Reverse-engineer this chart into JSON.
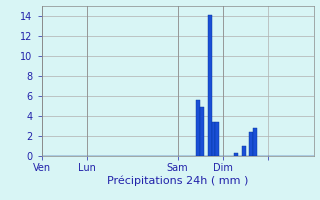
{
  "title": "Précipitations 24h ( mm )",
  "background_color": "#d8f5f5",
  "bar_color": "#1a4fd6",
  "bar_edge_color": "#003399",
  "grid_color": "#b0b0b0",
  "ylim": [
    0,
    15
  ],
  "yticks": [
    0,
    2,
    4,
    6,
    8,
    10,
    12,
    14
  ],
  "tick_color": "#2222aa",
  "title_color": "#2222aa",
  "n_bars": 72,
  "bar_values": [
    0,
    0,
    0,
    0,
    0,
    0,
    0,
    0,
    0,
    0,
    0,
    0,
    0,
    0,
    0,
    0,
    0,
    0,
    0,
    0,
    0,
    0,
    0,
    0,
    0,
    0,
    0,
    0,
    0,
    0,
    0,
    0,
    0,
    0,
    0,
    0,
    0,
    0,
    0,
    0,
    0,
    5.6,
    4.9,
    0,
    14.1,
    3.4,
    3.4,
    0,
    0,
    0,
    0,
    0.3,
    0,
    1.0,
    0,
    2.4,
    2.8,
    0,
    0,
    0,
    0,
    0,
    0,
    0,
    0,
    0,
    0,
    0,
    0,
    0,
    0,
    0
  ],
  "xtick_positions": [
    0,
    12,
    36,
    48,
    60
  ],
  "xtick_labels": [
    "Ven",
    "Lun",
    "Sam",
    "Dim",
    ""
  ]
}
